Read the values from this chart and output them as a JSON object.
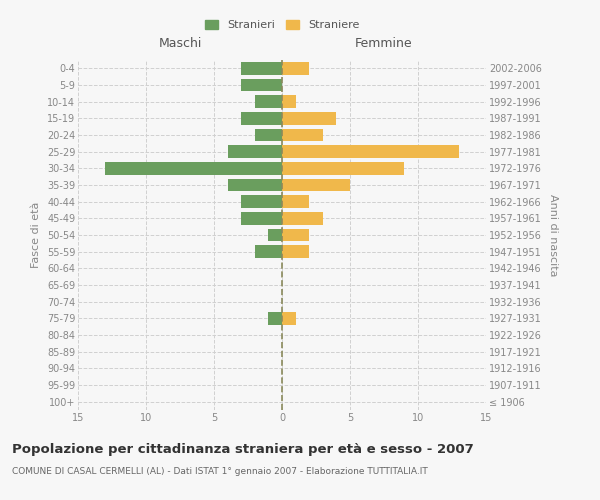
{
  "age_groups": [
    "100+",
    "95-99",
    "90-94",
    "85-89",
    "80-84",
    "75-79",
    "70-74",
    "65-69",
    "60-64",
    "55-59",
    "50-54",
    "45-49",
    "40-44",
    "35-39",
    "30-34",
    "25-29",
    "20-24",
    "15-19",
    "10-14",
    "5-9",
    "0-4"
  ],
  "birth_years": [
    "≤ 1906",
    "1907-1911",
    "1912-1916",
    "1917-1921",
    "1922-1926",
    "1927-1931",
    "1932-1936",
    "1937-1941",
    "1942-1946",
    "1947-1951",
    "1952-1956",
    "1957-1961",
    "1962-1966",
    "1967-1971",
    "1972-1976",
    "1977-1981",
    "1982-1986",
    "1987-1991",
    "1992-1996",
    "1997-2001",
    "2002-2006"
  ],
  "males": [
    0,
    0,
    0,
    0,
    0,
    1,
    0,
    0,
    0,
    2,
    1,
    3,
    3,
    4,
    13,
    4,
    2,
    3,
    2,
    3,
    3
  ],
  "females": [
    0,
    0,
    0,
    0,
    0,
    1,
    0,
    0,
    0,
    2,
    2,
    3,
    2,
    5,
    9,
    13,
    3,
    4,
    1,
    0,
    2
  ],
  "male_color": "#6a9e5e",
  "female_color": "#f0b84b",
  "dashed_line_color": "#8a8a5c",
  "grid_color": "#d0d0d0",
  "bg_color": "#f7f7f7",
  "title": "Popolazione per cittadinanza straniera per età e sesso - 2007",
  "subtitle": "COMUNE DI CASAL CERMELLI (AL) - Dati ISTAT 1° gennaio 2007 - Elaborazione TUTTITALIA.IT",
  "xlabel_left": "Maschi",
  "xlabel_right": "Femmine",
  "ylabel_left": "Fasce di età",
  "ylabel_right": "Anni di nascita",
  "legend_stranieri": "Stranieri",
  "legend_straniere": "Straniere",
  "xlim": 15,
  "bar_height": 0.75,
  "title_fontsize": 9.5,
  "subtitle_fontsize": 6.5,
  "tick_fontsize": 7,
  "label_fontsize": 8,
  "legend_fontsize": 8
}
